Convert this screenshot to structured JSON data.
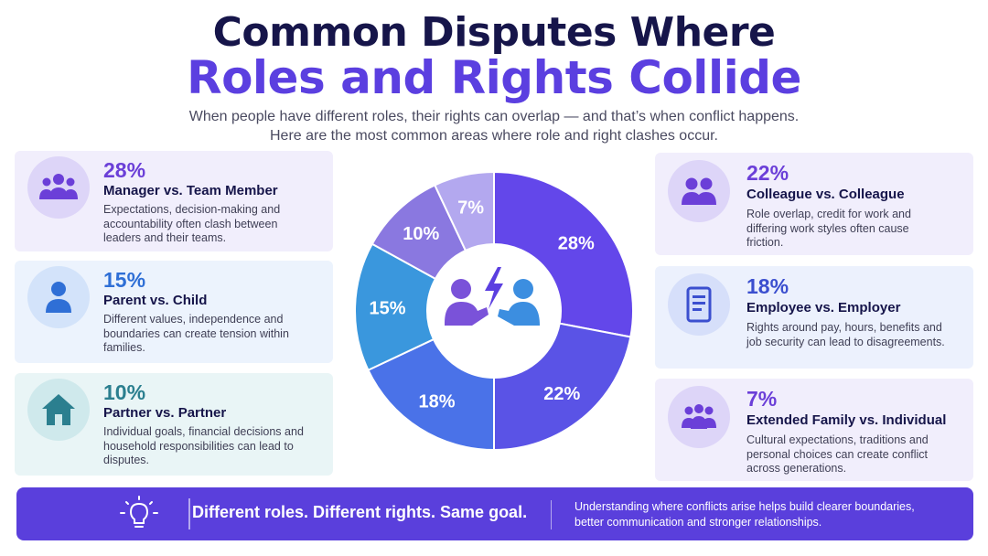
{
  "title": {
    "line1": "Common Disputes Where",
    "line2": "Roles and Rights Collide"
  },
  "subtitle": {
    "line1": "When people have different roles, their rights can overlap — and that’s when conflict happens.",
    "line2": "Here are the most common areas where role and right clashes occur."
  },
  "cards": [
    {
      "pct": "28%",
      "label": "Manager vs. Team Member",
      "desc": "Expectations, decision-making and accountability often clash between leaders and their teams.",
      "icon": "group-icon",
      "color": "#6b3fd8"
    },
    {
      "pct": "15%",
      "label": "Parent vs. Child",
      "desc": "Different values, independence and boundaries can create tension within families.",
      "icon": "person-icon",
      "color": "#2f6fd6"
    },
    {
      "pct": "10%",
      "label": "Partner vs. Partner",
      "desc": "Individual goals, financial decisions and household responsibilities can lead to disputes.",
      "icon": "house-icon",
      "color": "#2b7f8f"
    },
    {
      "pct": "22%",
      "label": "Colleague vs. Colleague",
      "desc": "Role overlap, credit for work and differing work styles often cause friction.",
      "icon": "two-people-icon",
      "color": "#6b3fd8"
    },
    {
      "pct": "18%",
      "label": "Employee vs. Employer",
      "desc": "Rights around pay, hours, benefits and job security can lead to disagreements.",
      "icon": "document-icon",
      "color": "#3b4fcf"
    },
    {
      "pct": "7%",
      "label": "Extended Family vs. Individual",
      "desc": "Cultural expectations, traditions and personal choices can create conflict across generations.",
      "icon": "family-icon",
      "color": "#6b3fd8"
    }
  ],
  "chart_data": {
    "type": "pie",
    "donut": true,
    "categories": [
      "Manager vs. Team Member",
      "Colleague vs. Colleague",
      "Employee vs. Employer",
      "Parent vs. Child",
      "Partner vs. Partner",
      "Extended Family vs. Individual"
    ],
    "values": [
      28,
      22,
      18,
      15,
      10,
      7
    ],
    "labels": [
      "28%",
      "22%",
      "18%",
      "15%",
      "10%",
      "7%"
    ],
    "colors": [
      "#6347ea",
      "#5a53e6",
      "#4a72e8",
      "#3a97dd",
      "#8a78e0",
      "#b3a8ef"
    ],
    "center_icon": "conflict-people-icon"
  },
  "banner": {
    "tagline": "Different roles. Different rights. Same goal.",
    "note": "Understanding where conflicts arise helps build clearer boundaries, better communication and stronger relationships.",
    "icon": "lightbulb-icon"
  }
}
